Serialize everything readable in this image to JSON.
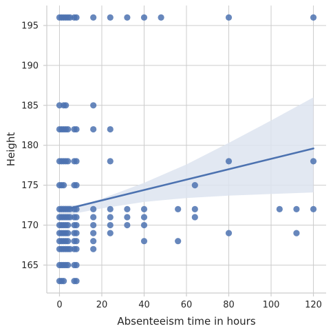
{
  "chart_data": {
    "type": "scatter",
    "xlabel": "Absenteeism time in hours",
    "ylabel": "Height",
    "xlim": [
      -6,
      126
    ],
    "ylim": [
      161.5,
      197.5
    ],
    "x_ticks": [
      0,
      20,
      40,
      60,
      80,
      100,
      120
    ],
    "y_ticks": [
      165,
      170,
      175,
      180,
      185,
      190,
      195
    ],
    "grid": true,
    "colors": {
      "points": "#4c72b0",
      "line": "#4c72b0",
      "band": "#dde4f0",
      "grid": "#cccccc",
      "axes": "#cccccc"
    },
    "points": [
      {
        "x": 0,
        "y": 163
      },
      {
        "x": 1,
        "y": 163
      },
      {
        "x": 2,
        "y": 163
      },
      {
        "x": 7,
        "y": 163
      },
      {
        "x": 8,
        "y": 163
      },
      {
        "x": 0,
        "y": 165
      },
      {
        "x": 1,
        "y": 165
      },
      {
        "x": 2,
        "y": 165
      },
      {
        "x": 3,
        "y": 165
      },
      {
        "x": 4,
        "y": 165
      },
      {
        "x": 7,
        "y": 165
      },
      {
        "x": 8,
        "y": 165
      },
      {
        "x": 0,
        "y": 167
      },
      {
        "x": 1,
        "y": 167
      },
      {
        "x": 2,
        "y": 167
      },
      {
        "x": 3,
        "y": 167
      },
      {
        "x": 4,
        "y": 167
      },
      {
        "x": 5,
        "y": 167
      },
      {
        "x": 7,
        "y": 167
      },
      {
        "x": 8,
        "y": 167
      },
      {
        "x": 16,
        "y": 167
      },
      {
        "x": 0,
        "y": 168
      },
      {
        "x": 1,
        "y": 168
      },
      {
        "x": 2,
        "y": 168
      },
      {
        "x": 3,
        "y": 168
      },
      {
        "x": 4,
        "y": 168
      },
      {
        "x": 7,
        "y": 168
      },
      {
        "x": 8,
        "y": 168
      },
      {
        "x": 16,
        "y": 168
      },
      {
        "x": 40,
        "y": 168
      },
      {
        "x": 56,
        "y": 168
      },
      {
        "x": 0,
        "y": 169
      },
      {
        "x": 1,
        "y": 169
      },
      {
        "x": 2,
        "y": 169
      },
      {
        "x": 3,
        "y": 169
      },
      {
        "x": 4,
        "y": 169
      },
      {
        "x": 7,
        "y": 169
      },
      {
        "x": 8,
        "y": 169
      },
      {
        "x": 16,
        "y": 169
      },
      {
        "x": 24,
        "y": 169
      },
      {
        "x": 80,
        "y": 169
      },
      {
        "x": 112,
        "y": 169
      },
      {
        "x": 0,
        "y": 170
      },
      {
        "x": 1,
        "y": 170
      },
      {
        "x": 2,
        "y": 170
      },
      {
        "x": 3,
        "y": 170
      },
      {
        "x": 4,
        "y": 170
      },
      {
        "x": 7,
        "y": 170
      },
      {
        "x": 8,
        "y": 170
      },
      {
        "x": 16,
        "y": 170
      },
      {
        "x": 24,
        "y": 170
      },
      {
        "x": 32,
        "y": 170
      },
      {
        "x": 40,
        "y": 170
      },
      {
        "x": 0,
        "y": 171
      },
      {
        "x": 1,
        "y": 171
      },
      {
        "x": 2,
        "y": 171
      },
      {
        "x": 3,
        "y": 171
      },
      {
        "x": 4,
        "y": 171
      },
      {
        "x": 5,
        "y": 171
      },
      {
        "x": 7,
        "y": 171
      },
      {
        "x": 8,
        "y": 171
      },
      {
        "x": 16,
        "y": 171
      },
      {
        "x": 24,
        "y": 171
      },
      {
        "x": 32,
        "y": 171
      },
      {
        "x": 40,
        "y": 171
      },
      {
        "x": 64,
        "y": 171
      },
      {
        "x": 0,
        "y": 172
      },
      {
        "x": 1,
        "y": 172
      },
      {
        "x": 2,
        "y": 172
      },
      {
        "x": 3,
        "y": 172
      },
      {
        "x": 4,
        "y": 172
      },
      {
        "x": 5,
        "y": 172
      },
      {
        "x": 7,
        "y": 172
      },
      {
        "x": 8,
        "y": 172
      },
      {
        "x": 16,
        "y": 172
      },
      {
        "x": 24,
        "y": 172
      },
      {
        "x": 32,
        "y": 172
      },
      {
        "x": 40,
        "y": 172
      },
      {
        "x": 56,
        "y": 172
      },
      {
        "x": 64,
        "y": 172
      },
      {
        "x": 104,
        "y": 172
      },
      {
        "x": 112,
        "y": 172
      },
      {
        "x": 120,
        "y": 172
      },
      {
        "x": 0,
        "y": 175
      },
      {
        "x": 1,
        "y": 175
      },
      {
        "x": 2,
        "y": 175
      },
      {
        "x": 7,
        "y": 175
      },
      {
        "x": 8,
        "y": 175
      },
      {
        "x": 64,
        "y": 175
      },
      {
        "x": 0,
        "y": 178
      },
      {
        "x": 1,
        "y": 178
      },
      {
        "x": 2,
        "y": 178
      },
      {
        "x": 3,
        "y": 178
      },
      {
        "x": 4,
        "y": 178
      },
      {
        "x": 7,
        "y": 178
      },
      {
        "x": 8,
        "y": 178
      },
      {
        "x": 24,
        "y": 178
      },
      {
        "x": 80,
        "y": 178
      },
      {
        "x": 120,
        "y": 178
      },
      {
        "x": 0,
        "y": 182
      },
      {
        "x": 1,
        "y": 182
      },
      {
        "x": 2,
        "y": 182
      },
      {
        "x": 3,
        "y": 182
      },
      {
        "x": 4,
        "y": 182
      },
      {
        "x": 7,
        "y": 182
      },
      {
        "x": 8,
        "y": 182
      },
      {
        "x": 16,
        "y": 182
      },
      {
        "x": 24,
        "y": 182
      },
      {
        "x": 0,
        "y": 185
      },
      {
        "x": 2,
        "y": 185
      },
      {
        "x": 3,
        "y": 185
      },
      {
        "x": 16,
        "y": 185
      },
      {
        "x": 0,
        "y": 196
      },
      {
        "x": 1,
        "y": 196
      },
      {
        "x": 2,
        "y": 196
      },
      {
        "x": 3,
        "y": 196
      },
      {
        "x": 4,
        "y": 196
      },
      {
        "x": 5,
        "y": 196
      },
      {
        "x": 7,
        "y": 196
      },
      {
        "x": 8,
        "y": 196
      },
      {
        "x": 16,
        "y": 196
      },
      {
        "x": 24,
        "y": 196
      },
      {
        "x": 32,
        "y": 196
      },
      {
        "x": 40,
        "y": 196
      },
      {
        "x": 48,
        "y": 196
      },
      {
        "x": 80,
        "y": 196
      },
      {
        "x": 120,
        "y": 196
      }
    ],
    "regression_line": [
      {
        "x": 0,
        "y": 171.8
      },
      {
        "x": 120,
        "y": 179.6
      }
    ],
    "confidence_band": {
      "upper": [
        {
          "x": 0,
          "y": 172.5
        },
        {
          "x": 10,
          "y": 172.5
        },
        {
          "x": 20,
          "y": 173.3
        },
        {
          "x": 40,
          "y": 175.3
        },
        {
          "x": 60,
          "y": 177.6
        },
        {
          "x": 80,
          "y": 180.3
        },
        {
          "x": 100,
          "y": 183.1
        },
        {
          "x": 120,
          "y": 186.0
        }
      ],
      "lower": [
        {
          "x": 0,
          "y": 171.1
        },
        {
          "x": 10,
          "y": 171.6
        },
        {
          "x": 20,
          "y": 172.1
        },
        {
          "x": 40,
          "y": 172.9
        },
        {
          "x": 60,
          "y": 173.4
        },
        {
          "x": 80,
          "y": 173.7
        },
        {
          "x": 100,
          "y": 173.9
        },
        {
          "x": 120,
          "y": 174.1
        }
      ]
    }
  }
}
